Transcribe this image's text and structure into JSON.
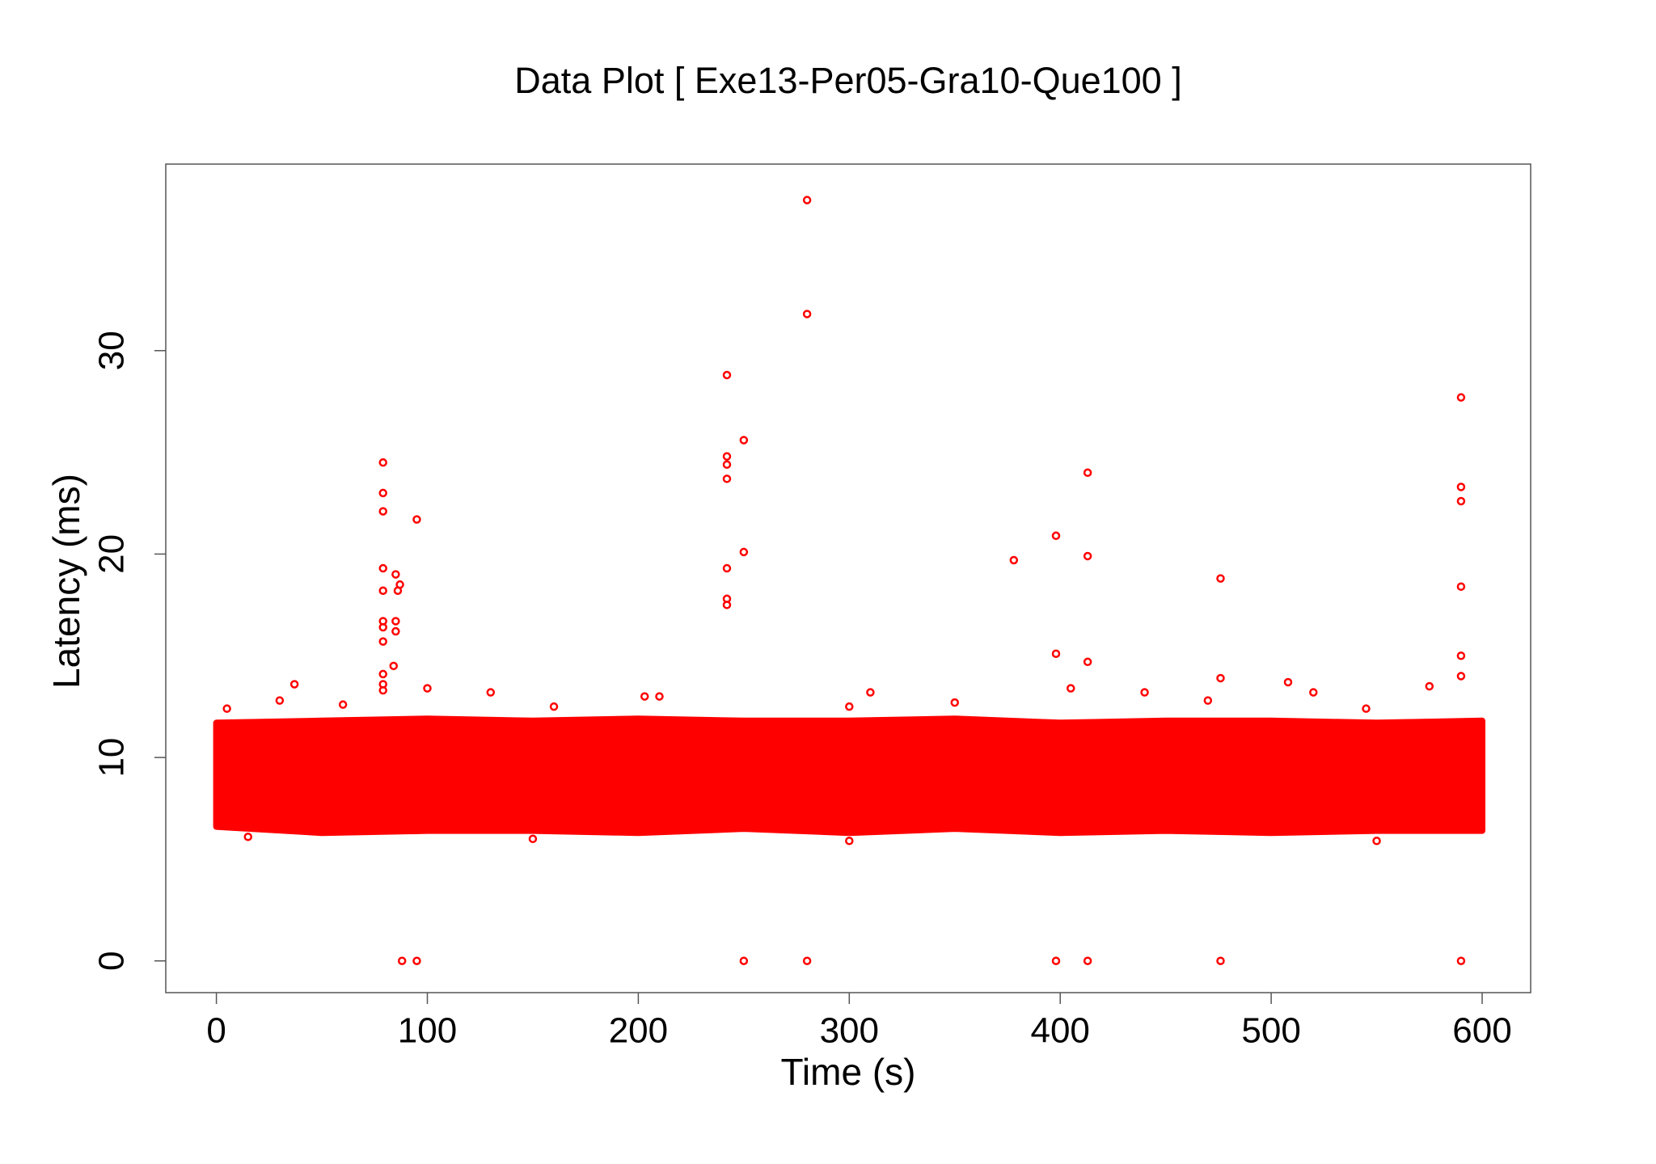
{
  "chart_data": {
    "type": "scatter",
    "title": "Data Plot [ Exe13-Per05-Gra10-Que100 ]",
    "x_label": "Time (s)",
    "y_label": "Latency (ms)",
    "color": "#ff0000",
    "xlim": [
      -24,
      623
    ],
    "ylim": [
      -1.56,
      39.17
    ],
    "xticks": [
      0,
      100,
      200,
      300,
      400,
      500,
      600
    ],
    "yticks": [
      0,
      10,
      20,
      30
    ],
    "band": {
      "x": [
        0,
        50,
        100,
        150,
        200,
        250,
        300,
        350,
        400,
        450,
        500,
        550,
        600
      ],
      "lower": [
        6.6,
        6.3,
        6.4,
        6.4,
        6.3,
        6.5,
        6.3,
        6.5,
        6.3,
        6.4,
        6.3,
        6.4,
        6.4
      ],
      "upper": [
        11.7,
        11.8,
        11.9,
        11.8,
        11.9,
        11.8,
        11.8,
        11.9,
        11.7,
        11.8,
        11.8,
        11.7,
        11.8
      ]
    },
    "x": [
      79,
      79,
      79,
      79,
      79,
      79,
      79,
      79,
      79,
      79,
      79,
      84,
      85,
      86,
      87,
      85,
      85,
      95,
      88,
      95,
      242,
      242,
      242,
      242,
      242,
      242,
      242,
      250,
      250,
      250,
      280,
      280,
      280,
      378,
      398,
      398,
      398,
      413,
      413,
      413,
      413,
      476,
      476,
      476,
      590,
      590,
      590,
      590,
      590,
      590,
      590,
      37,
      203,
      508,
      575,
      5,
      30,
      60,
      100,
      130,
      160,
      210,
      300,
      310,
      350,
      405,
      440,
      470,
      520,
      545,
      15,
      150,
      300,
      550
    ],
    "y": [
      24.5,
      23,
      22.1,
      19.3,
      18.2,
      16.7,
      16.4,
      15.7,
      14.1,
      13.6,
      13.3,
      14.5,
      19,
      18.2,
      18.5,
      16.7,
      16.2,
      21.7,
      0,
      0,
      28.8,
      24.8,
      24.4,
      23.7,
      19.3,
      17.8,
      17.5,
      25.6,
      20.1,
      0,
      37.4,
      31.8,
      0,
      19.7,
      20.9,
      15.1,
      0,
      24,
      19.9,
      14.7,
      0,
      18.8,
      13.9,
      0,
      27.7,
      23.3,
      22.6,
      18.4,
      15,
      14,
      0,
      13.6,
      13,
      13.7,
      13.5,
      12.4,
      12.8,
      12.6,
      13.4,
      13.2,
      12.5,
      13,
      12.5,
      13.2,
      12.7,
      13.4,
      13.2,
      12.8,
      13.2,
      12.4,
      6.1,
      6.0,
      5.9,
      5.9
    ]
  }
}
